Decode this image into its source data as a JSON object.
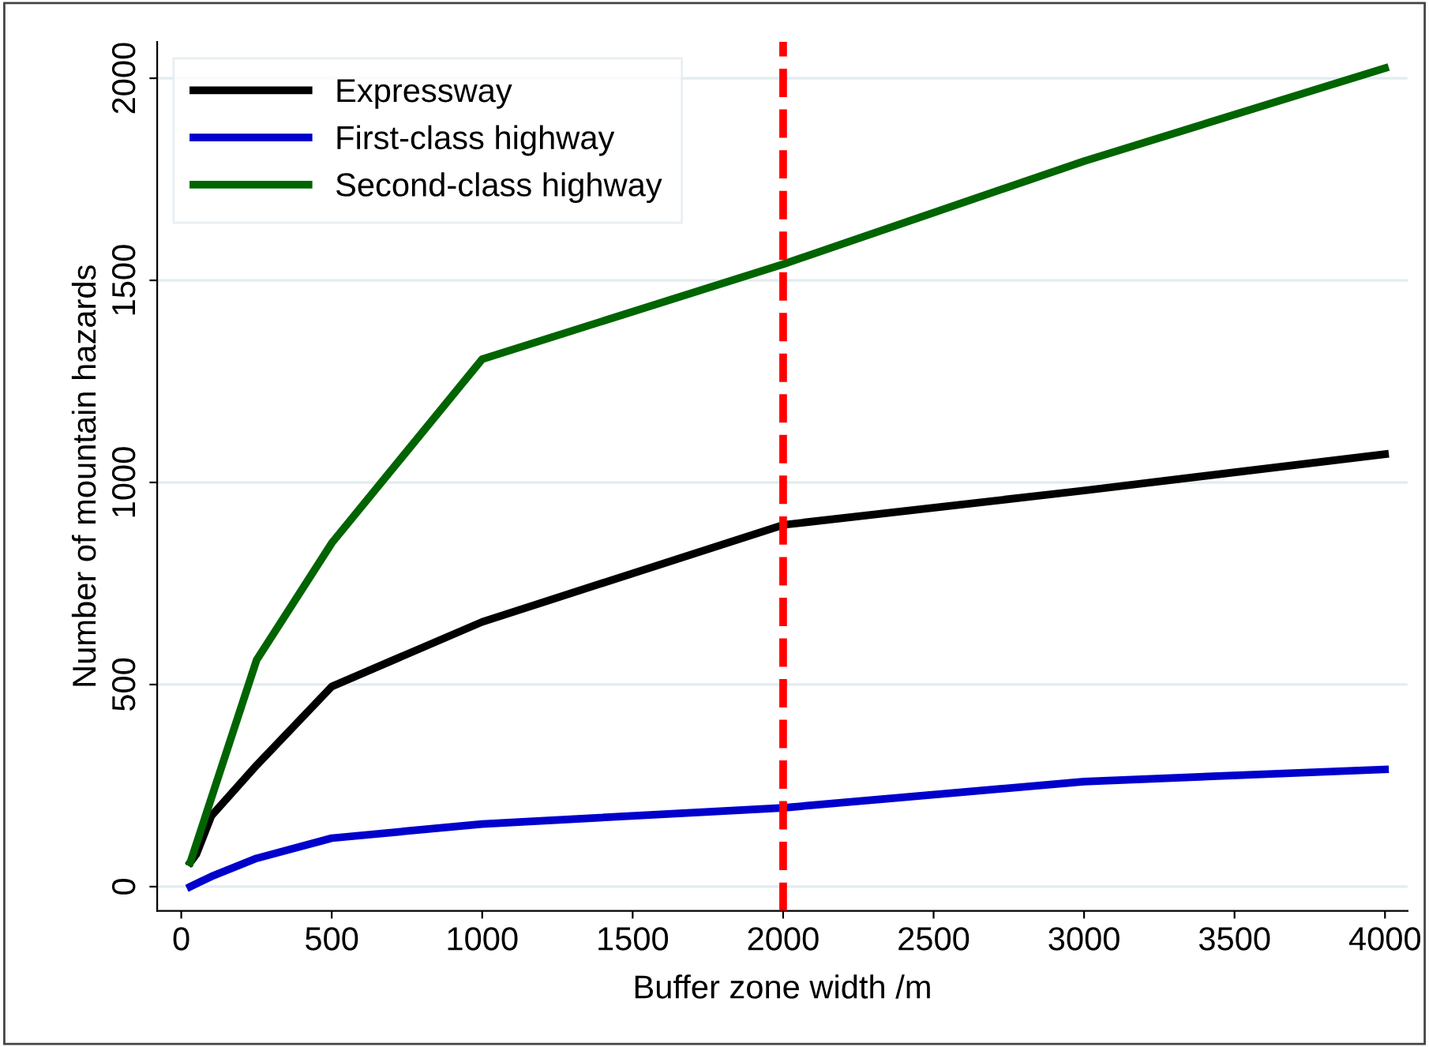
{
  "chart_data": {
    "type": "line",
    "xlabel": "Buffer zone width /m",
    "ylabel": "Number of mountain hazards",
    "series": [
      {
        "name": "Expressway",
        "color": "#000000",
        "x": [
          30,
          50,
          100,
          250,
          500,
          1000,
          2000,
          3000,
          4000
        ],
        "values": [
          60,
          80,
          175,
          300,
          495,
          655,
          895,
          980,
          1070
        ]
      },
      {
        "name": "First-class highway",
        "color": "#0000cc",
        "x": [
          30,
          100,
          250,
          500,
          1000,
          2000,
          3000,
          4000
        ],
        "values": [
          0,
          25,
          70,
          120,
          155,
          195,
          260,
          290
        ]
      },
      {
        "name": "Second-class highway",
        "color": "#006400",
        "x": [
          30,
          250,
          500,
          1000,
          2000,
          3000,
          4000
        ],
        "values": [
          60,
          560,
          850,
          1305,
          1540,
          1795,
          2025
        ]
      }
    ],
    "xlim": [
      -80,
      4075
    ],
    "ylim": [
      -60,
      2090
    ],
    "xticks": [
      0,
      500,
      1000,
      1500,
      2000,
      2500,
      3000,
      3500,
      4000
    ],
    "yticks": [
      0,
      500,
      1000,
      1500,
      2000
    ],
    "ref_lines": [
      {
        "axis": "x",
        "value": 2000,
        "color": "#ff0000",
        "line_style": "dashed"
      }
    ],
    "grid": "y",
    "legend": "top left",
    "marker": "none",
    "line_style": "solid"
  }
}
